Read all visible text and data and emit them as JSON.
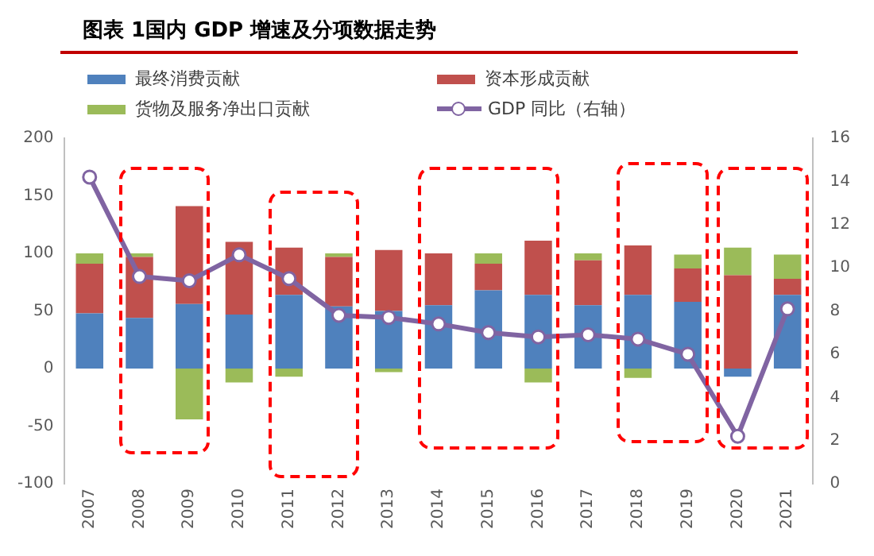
{
  "chart_data": {
    "type": "bar",
    "title": "图表 1国内 GDP 增速及分项数据走势",
    "categories": [
      "2007",
      "2008",
      "2009",
      "2010",
      "2011",
      "2012",
      "2013",
      "2014",
      "2015",
      "2016",
      "2017",
      "2018",
      "2019",
      "2020",
      "2021"
    ],
    "stacked": true,
    "series": [
      {
        "name": "最终消费贡献",
        "color": "#4f81bd",
        "values": [
          48,
          44,
          56,
          47,
          64,
          54,
          50,
          55,
          68,
          64,
          55,
          64,
          58,
          -7,
          64
        ]
      },
      {
        "name": "资本形成贡献",
        "color": "#c0504d",
        "values": [
          43,
          53,
          85,
          63,
          41,
          43,
          53,
          45,
          23,
          47,
          39,
          43,
          29,
          81,
          14
        ]
      },
      {
        "name": "货物及服务净出口贡献",
        "color": "#9bbb59",
        "values": [
          9,
          3,
          -44,
          -12,
          -7,
          3,
          -3,
          0,
          9,
          -12,
          6,
          -8,
          12,
          24,
          21
        ]
      },
      {
        "name": "GDP 同比（右轴）",
        "type": "line",
        "axis": "y2",
        "color": "#8064a2",
        "marker": "circle",
        "values": [
          14.2,
          9.6,
          9.4,
          10.6,
          9.5,
          7.8,
          7.7,
          7.4,
          7.0,
          6.8,
          6.9,
          6.7,
          6.0,
          2.2,
          8.1
        ]
      }
    ],
    "ylim": [
      -100,
      200
    ],
    "yticks": [
      -100,
      -50,
      0,
      50,
      100,
      150,
      200
    ],
    "y2lim": [
      0,
      16
    ],
    "y2ticks": [
      0,
      2,
      4,
      6,
      8,
      10,
      12,
      14,
      16
    ],
    "grid": false,
    "legend": "top"
  }
}
